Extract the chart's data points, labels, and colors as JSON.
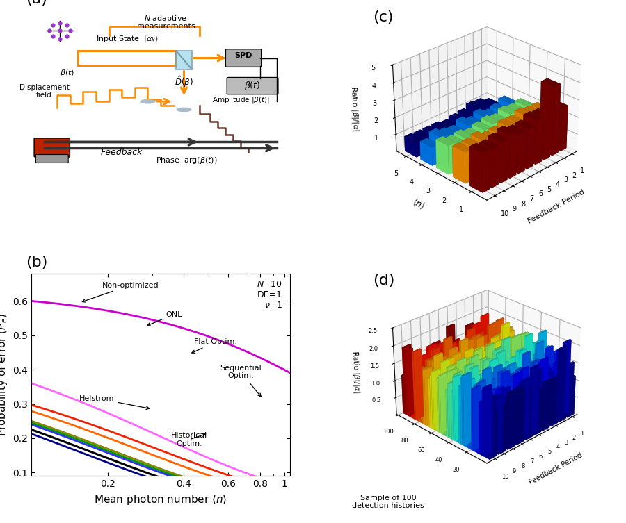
{
  "panel_b": {
    "label": "(b)",
    "xlabel": "Mean photon number $\\langle n \\rangle$",
    "ylabel": "Probability of error ($P_e$)",
    "annotation_text": "$N$=10\nDE=1\n$\\nu$=1",
    "non_opt_color": "#CC00CC",
    "qnl_color": "#EE2200",
    "flat_opt_color": "#FF6600",
    "seq_opt_color": "#FF44FF",
    "blue_color": "#3333FF",
    "green_color": "#009900",
    "olive_color": "#888800",
    "hist_opt_color": "#000000",
    "helstrom_color": "#000080"
  },
  "panel_c": {
    "label": "(c)",
    "xlabel": "Feedback Period",
    "n_label": "$\\langle n \\rangle$",
    "zlabel": "Ratio $|\\beta|/|\\alpha|$",
    "feedback_periods": [
      10,
      9,
      8,
      7,
      6,
      5,
      4,
      3,
      2,
      1
    ],
    "n_values": [
      1,
      2,
      3,
      4,
      5
    ],
    "zlim": [
      0,
      5
    ],
    "seed": 42
  },
  "panel_d": {
    "label": "(d)",
    "xlabel": "Feedback Period",
    "ylabel": "Sample of 100\ndetection histories",
    "zlabel": "Ratio $|\\beta|/|\\alpha|$",
    "feedback_periods": [
      10,
      9,
      8,
      7,
      6,
      5,
      4,
      3,
      2,
      1
    ],
    "n_samples": 100,
    "zlim": [
      0,
      2.5
    ],
    "seed": 123
  }
}
